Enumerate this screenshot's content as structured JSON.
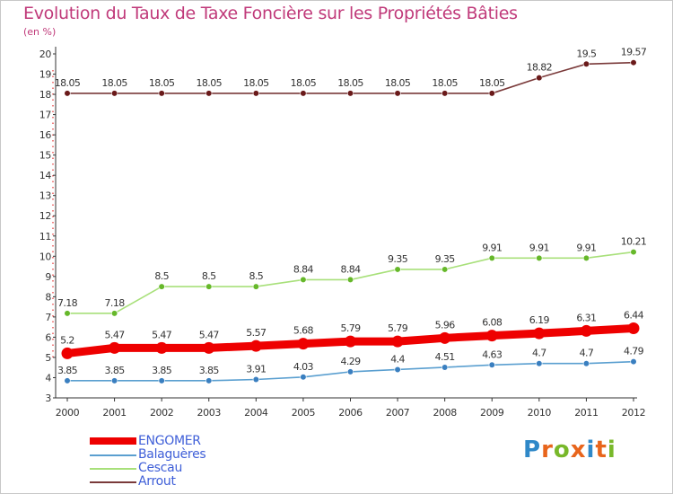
{
  "header": {
    "title": "Evolution du Taux de Taxe Foncière sur les Propriétés Bâties",
    "unit": "(en %)"
  },
  "brand": {
    "letters": [
      "P",
      "r",
      "o",
      "x",
      "i",
      "t",
      "i"
    ],
    "colors": [
      "#2f88c8",
      "#e8651c",
      "#78b82a",
      "#e8651c",
      "#2f88c8",
      "#e8651c",
      "#78b82a"
    ]
  },
  "chart_data": {
    "type": "line",
    "title": "Evolution du Taux de Taxe Foncière sur les Propriétés Bâties",
    "ylabel": "(en %)",
    "xlabel": "",
    "x": [
      "2000",
      "2001",
      "2002",
      "2003",
      "2004",
      "2005",
      "2006",
      "2007",
      "2008",
      "2009",
      "2010",
      "2011",
      "2012"
    ],
    "ylim": [
      3,
      20
    ],
    "yticks": [
      "3",
      "4",
      "5",
      "6",
      "7",
      "8",
      "9",
      "10",
      "11",
      "12",
      "13",
      "14",
      "15",
      "16",
      "17",
      "18",
      "19",
      "20"
    ],
    "grid": false,
    "legend_position": "bottom-left",
    "series": [
      {
        "name": "ENGOMER",
        "color": "#ee0000",
        "emphasis": true,
        "values": [
          5.2,
          5.47,
          5.47,
          5.47,
          5.57,
          5.68,
          5.79,
          5.79,
          5.96,
          6.08,
          6.19,
          6.31,
          6.44
        ],
        "labels": [
          "5.2",
          "5.47",
          "5.47",
          "5.47",
          "5.57",
          "5.68",
          "5.79",
          "5.79",
          "5.96",
          "6.08",
          "6.19",
          "6.31",
          "6.44"
        ],
        "label_position": "above"
      },
      {
        "name": "Balaguères",
        "color": "#5a9fd0",
        "marker_color": "#3a7fc0",
        "emphasis": false,
        "values": [
          3.85,
          3.85,
          3.85,
          3.85,
          3.91,
          4.03,
          4.29,
          4.4,
          4.51,
          4.63,
          4.7,
          4.7,
          4.79
        ],
        "labels": [
          "3.85",
          "3.85",
          "3.85",
          "3.85",
          "3.91",
          "4.03",
          "4.29",
          "4.4",
          "4.51",
          "4.63",
          "4.7",
          "4.7",
          "4.79"
        ],
        "label_position": "above"
      },
      {
        "name": "Cescau",
        "color": "#a8e07a",
        "marker_color": "#66b82a",
        "emphasis": false,
        "values": [
          7.18,
          7.18,
          8.5,
          8.5,
          8.5,
          8.84,
          8.84,
          9.35,
          9.35,
          9.91,
          9.91,
          9.91,
          10.21
        ],
        "labels": [
          "7.18",
          "7.18",
          "8.5",
          "8.5",
          "8.5",
          "8.84",
          "8.84",
          "9.35",
          "9.35",
          "9.91",
          "9.91",
          "9.91",
          "10.21"
        ],
        "label_position": "above"
      },
      {
        "name": "Arrout",
        "color": "#7a3a3a",
        "marker_color": "#6a1a1a",
        "emphasis": false,
        "values": [
          18.05,
          18.05,
          18.05,
          18.05,
          18.05,
          18.05,
          18.05,
          18.05,
          18.05,
          18.05,
          18.82,
          19.5,
          19.57
        ],
        "labels": [
          "18.05",
          "18.05",
          "18.05",
          "18.05",
          "18.05",
          "18.05",
          "18.05",
          "18.05",
          "18.05",
          "18.05",
          "18.82",
          "19.5",
          "19.57"
        ],
        "label_position": "above"
      }
    ]
  }
}
